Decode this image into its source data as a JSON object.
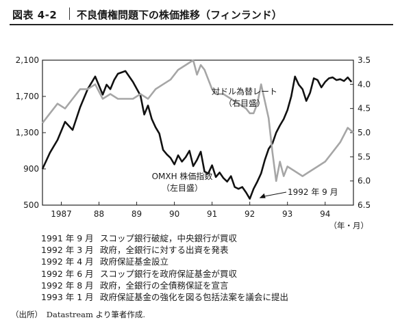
{
  "header": {
    "figure_label": "図表 4-2",
    "title": "不良債権問題下の株価推移（フィンランド）"
  },
  "chart_data": {
    "type": "line",
    "x_unit_label": "（年・月）",
    "x_ticks": [
      "1987",
      "88",
      "89",
      "90",
      "91",
      "92",
      "93",
      "94"
    ],
    "x_tick_positions": [
      1987.0,
      1988.0,
      1989.0,
      1990.0,
      1991.0,
      1992.0,
      1993.0,
      1994.0
    ],
    "xlim": [
      1986.5,
      1994.75
    ],
    "left_axis": {
      "ticks": [
        "2,100",
        "1,700",
        "1,300",
        "900",
        "500"
      ],
      "ylim": [
        500,
        2100
      ]
    },
    "right_axis": {
      "ticks": [
        "3.5",
        "4.0",
        "4.5",
        "5.0",
        "5.5",
        "6.0",
        "6.5"
      ],
      "ylim": [
        3.5,
        6.5
      ],
      "inverted": true
    },
    "series": [
      {
        "name": "OMXH 株価指数",
        "sublabel": "（左目盛）",
        "axis": "left",
        "color": "#111111",
        "x": [
          1986.5,
          1986.7,
          1986.9,
          1987.1,
          1987.3,
          1987.5,
          1987.7,
          1987.9,
          1988.1,
          1988.2,
          1988.3,
          1988.4,
          1988.5,
          1988.7,
          1988.9,
          1989.1,
          1989.2,
          1989.3,
          1989.4,
          1989.5,
          1989.6,
          1989.7,
          1989.8,
          1989.9,
          1990.0,
          1990.1,
          1990.2,
          1990.3,
          1990.4,
          1990.5,
          1990.6,
          1990.7,
          1990.8,
          1990.9,
          1991.0,
          1991.1,
          1991.2,
          1991.3,
          1991.4,
          1991.5,
          1991.6,
          1991.7,
          1991.8,
          1991.9,
          1992.0,
          1992.1,
          1992.2,
          1992.3,
          1992.4,
          1992.5,
          1992.6,
          1992.7,
          1992.8,
          1992.9,
          1993.0,
          1993.1,
          1993.2,
          1993.3,
          1993.4,
          1993.5,
          1993.6,
          1993.7,
          1993.8,
          1993.9,
          1994.0,
          1994.1,
          1994.2,
          1994.3,
          1994.4,
          1994.5,
          1994.6,
          1994.7
        ],
        "y": [
          900,
          1080,
          1220,
          1420,
          1330,
          1580,
          1780,
          1920,
          1720,
          1830,
          1780,
          1880,
          1950,
          1980,
          1860,
          1710,
          1500,
          1600,
          1450,
          1360,
          1290,
          1110,
          1060,
          1020,
          950,
          1050,
          980,
          1030,
          1100,
          930,
          1000,
          1090,
          870,
          850,
          940,
          810,
          860,
          800,
          760,
          820,
          700,
          680,
          700,
          640,
          570,
          680,
          760,
          850,
          1000,
          1120,
          1180,
          1300,
          1380,
          1450,
          1550,
          1700,
          1920,
          1830,
          1780,
          1650,
          1740,
          1900,
          1880,
          1800,
          1860,
          1900,
          1910,
          1880,
          1890,
          1870,
          1910,
          1860
        ]
      },
      {
        "name": "対ドル為替レート",
        "sublabel": "（右目盛）",
        "axis": "right",
        "color": "#a6a6a6",
        "x": [
          1986.5,
          1986.7,
          1986.9,
          1987.1,
          1987.3,
          1987.5,
          1987.7,
          1987.9,
          1988.1,
          1988.3,
          1988.5,
          1988.7,
          1988.9,
          1989.1,
          1989.3,
          1989.5,
          1989.7,
          1989.9,
          1990.0,
          1990.1,
          1990.3,
          1990.5,
          1990.6,
          1990.7,
          1990.8,
          1990.9,
          1991.0,
          1991.1,
          1991.3,
          1991.5,
          1991.7,
          1991.9,
          1992.0,
          1992.1,
          1992.2,
          1992.3,
          1992.5,
          1992.6,
          1992.7,
          1992.8,
          1992.9,
          1993.0,
          1993.2,
          1993.4,
          1993.6,
          1993.8,
          1994.0,
          1994.2,
          1994.4,
          1994.6,
          1994.75
        ],
        "y": [
          4.8,
          4.6,
          4.4,
          4.5,
          4.3,
          4.1,
          4.1,
          4.0,
          4.3,
          4.2,
          4.3,
          4.3,
          4.3,
          4.2,
          4.3,
          4.1,
          4.0,
          3.9,
          3.8,
          3.7,
          3.6,
          3.5,
          3.8,
          3.6,
          3.7,
          3.9,
          4.1,
          4.2,
          4.2,
          4.3,
          4.4,
          4.5,
          4.6,
          4.6,
          4.4,
          4.0,
          4.7,
          5.4,
          6.0,
          5.6,
          5.9,
          5.7,
          5.8,
          5.9,
          5.8,
          5.7,
          5.6,
          5.4,
          5.2,
          4.9,
          5.0
        ]
      }
    ],
    "annotations": [
      {
        "text": "1992 年 9 月",
        "x": 1992.2,
        "y": 570
      }
    ]
  },
  "events": [
    {
      "date": "1991 年 9 月",
      "text": "スコップ銀行破綻，中央銀行が買収"
    },
    {
      "date": "1992 年 3 月",
      "text": "政府，全銀行に対する出資を発表"
    },
    {
      "date": "1992 年 4 月",
      "text": "政府保証基金設立"
    },
    {
      "date": "1992 年 6 月",
      "text": "スコップ銀行を政府保証基金が買収"
    },
    {
      "date": "1992 年 8 月",
      "text": "政府，全銀行の全債務保証を宣言"
    },
    {
      "date": "1993 年 1 月",
      "text": "政府保証基金の強化を図る包括法案を議会に提出"
    }
  ],
  "source": "（出所）　Datastream より筆者作成."
}
